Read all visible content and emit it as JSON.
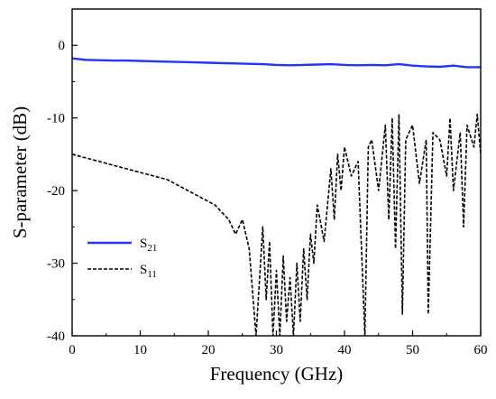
{
  "chart_data": {
    "type": "line",
    "title": "",
    "xlabel": "Frequency (GHz)",
    "ylabel": "S-parameter (dB)",
    "xlim": [
      0,
      60
    ],
    "ylim": [
      -40,
      5
    ],
    "xticks": [
      0,
      10,
      20,
      30,
      40,
      50,
      60
    ],
    "yticks": [
      0,
      -10,
      -20,
      -30,
      -40
    ],
    "xtick_labels": [
      "0",
      "10",
      "20",
      "30",
      "40",
      "50",
      "60"
    ],
    "ytick_labels": [
      "0",
      "-10",
      "-20",
      "-30",
      "-40"
    ],
    "grid": false,
    "legend_position": "lower-left",
    "series": [
      {
        "name": "S21",
        "name_base": "S",
        "name_sub": "21",
        "color": "#1f35ff",
        "style": "solid",
        "x": [
          0,
          2,
          4,
          6,
          8,
          10,
          12,
          14,
          16,
          18,
          20,
          22,
          24,
          26,
          28,
          30,
          32,
          34,
          36,
          38,
          40,
          42,
          44,
          46,
          48,
          50,
          52,
          54,
          56,
          58,
          60
        ],
        "y": [
          -1.8,
          -2.0,
          -2.05,
          -2.1,
          -2.1,
          -2.15,
          -2.2,
          -2.25,
          -2.3,
          -2.35,
          -2.4,
          -2.45,
          -2.5,
          -2.55,
          -2.6,
          -2.7,
          -2.75,
          -2.7,
          -2.65,
          -2.6,
          -2.7,
          -2.75,
          -2.7,
          -2.75,
          -2.6,
          -2.8,
          -2.9,
          -2.95,
          -2.8,
          -3.0,
          -3.0
        ]
      },
      {
        "name": "S11",
        "name_base": "S",
        "name_sub": "11",
        "color": "#000000",
        "style": "dashed",
        "x": [
          0,
          2,
          4,
          6,
          8,
          10,
          12,
          14,
          16,
          18,
          20,
          21,
          22,
          23,
          24,
          25,
          26,
          27,
          28,
          28.5,
          29,
          29.5,
          30,
          30.5,
          31,
          31.5,
          32,
          32.5,
          33,
          33.5,
          34,
          34.5,
          35,
          35.5,
          36,
          37,
          38,
          38.5,
          39,
          39.5,
          40,
          41,
          42,
          43,
          43.5,
          44,
          45,
          46,
          46.5,
          47,
          47.5,
          48,
          48.5,
          49,
          50,
          51,
          52,
          52.3,
          53,
          54,
          55,
          55.5,
          56,
          57,
          57.5,
          58,
          59,
          59.5,
          60
        ],
        "y": [
          -15,
          -15.5,
          -16,
          -16.5,
          -17,
          -17.5,
          -18,
          -18.5,
          -19.5,
          -20.5,
          -21.5,
          -22,
          -23,
          -24,
          -26,
          -24,
          -28,
          -40,
          -25,
          -35,
          -27,
          -40,
          -31,
          -40,
          -29,
          -38,
          -32,
          -40,
          -30,
          -38,
          -28,
          -35,
          -26,
          -30,
          -22,
          -27,
          -17,
          -24,
          -15,
          -20,
          -14,
          -18,
          -16,
          -40,
          -14,
          -13,
          -20,
          -11,
          -24,
          -10,
          -28,
          -9.5,
          -37,
          -13,
          -11,
          -19,
          -13,
          -37,
          -12,
          -13,
          -18,
          -10,
          -20,
          -12,
          -25,
          -11,
          -14,
          -9.5,
          -15
        ]
      }
    ]
  }
}
